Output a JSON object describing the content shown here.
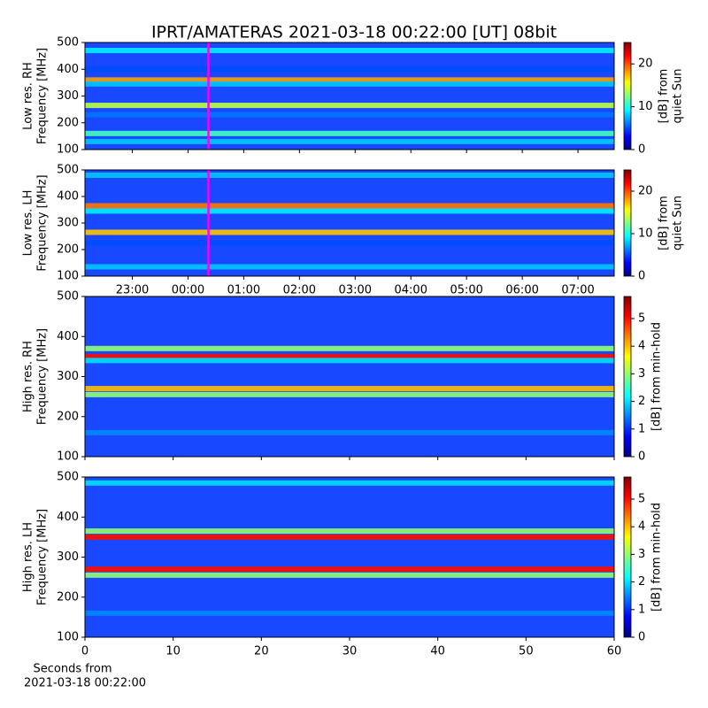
{
  "chart_data": [
    {
      "type": "spectrogram",
      "title": "IPRT/AMATERAS 2021-03-18 00:22:00 [UT]   08bit",
      "ylabel": [
        "Low res. RH",
        "Frequency [MHz]"
      ],
      "ylim": [
        100,
        500
      ],
      "yticks": [
        100,
        200,
        300,
        400,
        500
      ],
      "xlim": [
        22.15,
        31.65
      ],
      "marker_x": 24.367,
      "marker_color": "#ff00ff",
      "bands": [
        {
          "freq": 470,
          "value": 9
        },
        {
          "freq": 400,
          "value": 5
        },
        {
          "freq": 360,
          "value": 18
        },
        {
          "freq": 345,
          "value": 8
        },
        {
          "freq": 265,
          "value": 14
        },
        {
          "freq": 230,
          "value": 6
        },
        {
          "freq": 160,
          "value": 11
        },
        {
          "freq": 130,
          "value": 8
        }
      ],
      "colorbar": {
        "label": [
          "[dB] from",
          "quiet Sun"
        ],
        "lim": [
          0,
          25
        ],
        "ticks": [
          0,
          10,
          20
        ]
      }
    },
    {
      "type": "spectrogram",
      "ylabel": [
        "Low res. LH",
        "Frequency [MHz]"
      ],
      "ylim": [
        100,
        500
      ],
      "yticks": [
        100,
        200,
        300,
        400,
        500
      ],
      "xlim": [
        22.15,
        31.65
      ],
      "marker_x": 24.367,
      "marker_color": "#ff00ff",
      "xticks": [
        {
          "value": 23,
          "label": "23:00"
        },
        {
          "value": 24,
          "label": "00:00"
        },
        {
          "value": 25,
          "label": "01:00"
        },
        {
          "value": 26,
          "label": "02:00"
        },
        {
          "value": 27,
          "label": "03:00"
        },
        {
          "value": 28,
          "label": "04:00"
        },
        {
          "value": 29,
          "label": "05:00"
        },
        {
          "value": 30,
          "label": "06:00"
        },
        {
          "value": 31,
          "label": "07:00"
        }
      ],
      "bands": [
        {
          "freq": 480,
          "value": 8
        },
        {
          "freq": 365,
          "value": 19
        },
        {
          "freq": 345,
          "value": 9
        },
        {
          "freq": 265,
          "value": 17
        },
        {
          "freq": 225,
          "value": 5
        },
        {
          "freq": 135,
          "value": 8
        }
      ],
      "colorbar": {
        "label": [
          "[dB] from",
          "quiet Sun"
        ],
        "lim": [
          0,
          25
        ],
        "ticks": [
          0,
          10,
          20
        ]
      }
    },
    {
      "type": "spectrogram",
      "ylabel": [
        "High res. RH",
        "Frequency [MHz]"
      ],
      "ylim": [
        100,
        500
      ],
      "yticks": [
        100,
        200,
        300,
        400,
        500
      ],
      "xlim": [
        0,
        60
      ],
      "bands": [
        {
          "freq": 370,
          "value": 3
        },
        {
          "freq": 350,
          "value": 5
        },
        {
          "freq": 340,
          "value": 2
        },
        {
          "freq": 270,
          "value": 4
        },
        {
          "freq": 255,
          "value": 3
        },
        {
          "freq": 160,
          "value": 1.5
        }
      ],
      "colorbar": {
        "label": [
          "[dB] from min-hold"
        ],
        "lim": [
          0,
          5.8
        ],
        "ticks": [
          0,
          1,
          2,
          3,
          4,
          5
        ]
      }
    },
    {
      "type": "spectrogram",
      "ylabel": [
        "High res. LH",
        "Frequency [MHz]"
      ],
      "ylim": [
        100,
        500
      ],
      "yticks": [
        100,
        200,
        300,
        400,
        500
      ],
      "xlim": [
        0,
        60
      ],
      "xticks": [
        0,
        10,
        20,
        30,
        40,
        50,
        60
      ],
      "xlabel": [
        "Seconds from",
        "2021-03-18 00:22:00"
      ],
      "bands": [
        {
          "freq": 485,
          "value": 2
        },
        {
          "freq": 365,
          "value": 3
        },
        {
          "freq": 350,
          "value": 5
        },
        {
          "freq": 270,
          "value": 5
        },
        {
          "freq": 255,
          "value": 3
        },
        {
          "freq": 160,
          "value": 1.5
        }
      ],
      "colorbar": {
        "label": [
          "[dB] from min-hold"
        ],
        "lim": [
          0,
          5.8
        ],
        "ticks": [
          0,
          1,
          2,
          3,
          4,
          5
        ]
      }
    }
  ]
}
